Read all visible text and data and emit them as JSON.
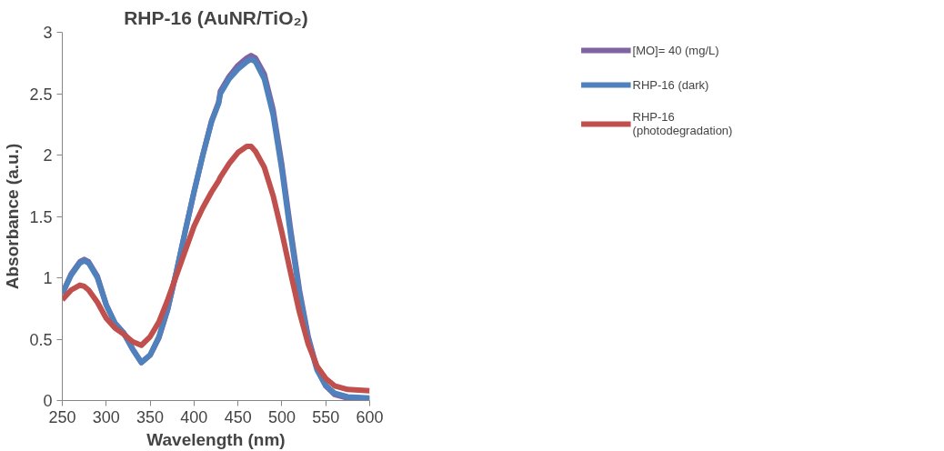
{
  "chart_data": {
    "type": "line",
    "title": "RHP-16 (AuNR/TiO₂)",
    "xlabel": "Wavelength (nm)",
    "ylabel": "Absorbance (a.u.)",
    "x": [
      250,
      260,
      270,
      275,
      280,
      290,
      300,
      310,
      320,
      330,
      340,
      350,
      360,
      370,
      380,
      390,
      400,
      410,
      420,
      428,
      430,
      440,
      450,
      460,
      465,
      470,
      480,
      490,
      500,
      510,
      520,
      530,
      540,
      550,
      560,
      575,
      600
    ],
    "series": [
      {
        "name": "[MO]= 40 (mg/L)",
        "color": "#8064a2",
        "values": [
          0.87,
          1.03,
          1.13,
          1.15,
          1.13,
          1.01,
          0.78,
          0.63,
          0.55,
          0.42,
          0.31,
          0.37,
          0.51,
          0.74,
          1.05,
          1.38,
          1.7,
          2.0,
          2.28,
          2.43,
          2.52,
          2.64,
          2.73,
          2.79,
          2.81,
          2.79,
          2.66,
          2.37,
          1.92,
          1.39,
          0.9,
          0.52,
          0.26,
          0.12,
          0.05,
          0.02,
          0.01
        ]
      },
      {
        "name": "RHP-16 (dark)",
        "color": "#4f81bd",
        "values": [
          0.87,
          1.02,
          1.12,
          1.14,
          1.12,
          1.0,
          0.78,
          0.63,
          0.55,
          0.42,
          0.31,
          0.37,
          0.52,
          0.75,
          1.05,
          1.38,
          1.7,
          2.0,
          2.27,
          2.42,
          2.5,
          2.62,
          2.7,
          2.76,
          2.78,
          2.76,
          2.62,
          2.33,
          1.88,
          1.35,
          0.87,
          0.5,
          0.25,
          0.12,
          0.06,
          0.03,
          0.02
        ]
      },
      {
        "name": "RHP-16\n(photodegradation)",
        "color": "#c0504d",
        "values": [
          0.82,
          0.9,
          0.94,
          0.93,
          0.9,
          0.8,
          0.67,
          0.59,
          0.54,
          0.48,
          0.45,
          0.52,
          0.64,
          0.82,
          1.02,
          1.22,
          1.42,
          1.57,
          1.7,
          1.79,
          1.82,
          1.93,
          2.02,
          2.07,
          2.07,
          2.03,
          1.9,
          1.67,
          1.37,
          1.04,
          0.72,
          0.46,
          0.28,
          0.18,
          0.12,
          0.09,
          0.08
        ]
      }
    ],
    "xlim": [
      250,
      600
    ],
    "xticks": [
      250,
      300,
      350,
      400,
      450,
      500,
      550,
      600
    ],
    "ylim": [
      0,
      3
    ],
    "yticks": [
      0,
      0.5,
      1,
      1.5,
      2,
      2.5,
      3
    ],
    "grid": false,
    "legend": "right",
    "marker": "none",
    "line_style": "solid"
  }
}
